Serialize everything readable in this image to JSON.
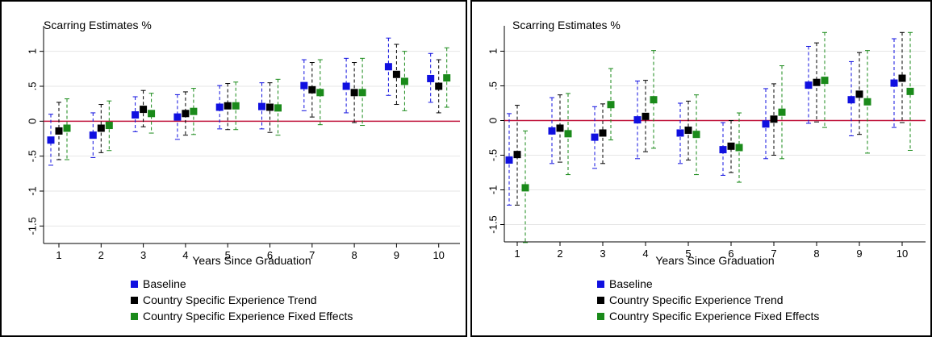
{
  "colors": {
    "baseline": "#1010e0",
    "trend": "#000000",
    "fixed": "#1a8a1a",
    "zero_line": "#c0143c",
    "grid": "#e6e6e6"
  },
  "chart_data": [
    {
      "type": "scatter",
      "title": "Scarring Estimates %",
      "xlabel": "Years Since Graduation",
      "ylabel": "",
      "categories": [
        "1",
        "2",
        "3",
        "4",
        "5",
        "6",
        "7",
        "8",
        "9",
        "10"
      ],
      "ylim": [
        -1.75,
        1.25
      ],
      "yticks": [
        "1",
        ".5",
        "0",
        "-.5",
        "-1",
        "-1.5"
      ],
      "grid": true,
      "legend_position": "bottom-left",
      "error_bars": "dashed",
      "series": [
        {
          "name": "Baseline",
          "values": [
            -0.27,
            -0.2,
            0.09,
            0.06,
            0.2,
            0.21,
            0.51,
            0.5,
            0.78,
            0.61
          ],
          "lower": [
            -0.63,
            -0.52,
            -0.15,
            -0.26,
            -0.11,
            -0.11,
            0.15,
            0.12,
            0.37,
            0.27
          ],
          "upper": [
            0.1,
            0.12,
            0.35,
            0.38,
            0.51,
            0.55,
            0.88,
            0.9,
            1.19,
            0.97
          ]
        },
        {
          "name": "Country Specific Experience Trend",
          "values": [
            -0.14,
            -0.1,
            0.17,
            0.11,
            0.22,
            0.2,
            0.45,
            0.41,
            0.67,
            0.5
          ],
          "lower": [
            -0.55,
            -0.45,
            -0.08,
            -0.2,
            -0.12,
            -0.16,
            0.06,
            -0.02,
            0.24,
            0.12
          ],
          "upper": [
            0.27,
            0.24,
            0.44,
            0.42,
            0.54,
            0.55,
            0.84,
            0.84,
            1.1,
            0.88
          ]
        },
        {
          "name": "Country Specific Experience Fixed Effects",
          "values": [
            -0.1,
            -0.06,
            0.11,
            0.14,
            0.22,
            0.19,
            0.41,
            0.41,
            0.57,
            0.62
          ],
          "lower": [
            -0.55,
            -0.42,
            -0.17,
            -0.19,
            -0.12,
            -0.2,
            -0.05,
            -0.06,
            0.15,
            0.2
          ],
          "upper": [
            0.32,
            0.29,
            0.4,
            0.47,
            0.56,
            0.6,
            0.88,
            0.9,
            1.0,
            1.05
          ]
        }
      ]
    },
    {
      "type": "scatter",
      "title": "Scarring Estimates %",
      "xlabel": "Years Since Graduation",
      "ylabel": "",
      "categories": [
        "1",
        "2",
        "3",
        "4",
        "5",
        "6",
        "7",
        "8",
        "9",
        "10"
      ],
      "ylim": [
        -1.75,
        1.25
      ],
      "yticks": [
        "1",
        ".5",
        "0",
        "-.5",
        "-1",
        "-1.5"
      ],
      "grid": true,
      "legend_position": "bottom-left",
      "error_bars": "dashed",
      "series": [
        {
          "name": "Baseline",
          "values": [
            -0.57,
            -0.15,
            -0.24,
            0.01,
            -0.18,
            -0.42,
            -0.05,
            0.51,
            0.3,
            0.54
          ],
          "lower": [
            -1.22,
            -0.62,
            -0.69,
            -0.55,
            -0.62,
            -0.79,
            -0.55,
            -0.04,
            -0.22,
            -0.1
          ],
          "upper": [
            0.1,
            0.33,
            0.2,
            0.57,
            0.25,
            -0.03,
            0.46,
            1.07,
            0.85,
            1.18
          ]
        },
        {
          "name": "Country Specific Experience Trend",
          "values": [
            -0.49,
            -0.11,
            -0.18,
            0.06,
            -0.14,
            -0.37,
            0.02,
            0.55,
            0.38,
            0.61
          ],
          "lower": [
            -1.22,
            -0.6,
            -0.62,
            -0.45,
            -0.57,
            -0.75,
            -0.5,
            -0.02,
            -0.2,
            -0.03
          ],
          "upper": [
            0.22,
            0.37,
            0.24,
            0.58,
            0.28,
            0.0,
            0.53,
            1.12,
            0.98,
            1.27
          ]
        },
        {
          "name": "Country Specific Experience Fixed Effects",
          "values": [
            -0.97,
            -0.19,
            0.23,
            0.3,
            -0.2,
            -0.39,
            0.12,
            0.58,
            0.27,
            0.42
          ],
          "lower": [
            -1.76,
            -0.78,
            -0.28,
            -0.4,
            -0.78,
            -0.89,
            -0.55,
            -0.1,
            -0.47,
            -0.43
          ],
          "upper": [
            -0.15,
            0.39,
            0.75,
            1.01,
            0.37,
            0.11,
            0.79,
            1.27,
            1.01,
            1.27
          ]
        }
      ]
    }
  ]
}
